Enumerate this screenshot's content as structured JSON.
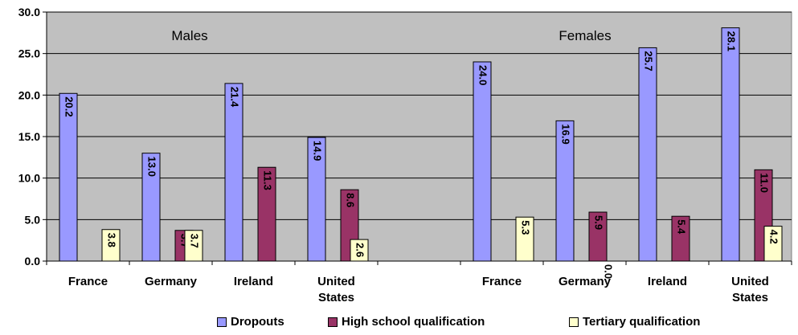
{
  "chart_data": {
    "type": "bar",
    "title": "",
    "xlabel": "",
    "ylabel": "",
    "ylim": [
      0,
      30
    ],
    "yticks": [
      "0.0",
      "5.0",
      "10.0",
      "15.0",
      "20.0",
      "25.0",
      "30.0"
    ],
    "grid": true,
    "legend_position": "bottom",
    "groups": [
      {
        "label": "Males",
        "categories": [
          "France",
          "Germany",
          "Ireland",
          "United States"
        ]
      },
      {
        "label": "Females",
        "categories": [
          "France",
          "Germany",
          "Ireland",
          "United States"
        ]
      }
    ],
    "series": [
      {
        "name": "Dropouts",
        "color": "#9999ff",
        "values": [
          20.2,
          13.0,
          21.4,
          14.9,
          24.0,
          16.9,
          25.7,
          28.1
        ],
        "labels": [
          "20.2",
          "13.0",
          "21.4",
          "14.9",
          "24.0",
          "16.9",
          "25.7",
          "28.1"
        ]
      },
      {
        "name": "High school qualification",
        "color": "#993366",
        "values": [
          null,
          3.7,
          11.3,
          8.6,
          null,
          5.9,
          5.4,
          11.0
        ],
        "labels": [
          null,
          "3.7",
          "11.3",
          "8.6",
          null,
          "5.9",
          "5.4",
          "11.0"
        ]
      },
      {
        "name": "Tertiary qualification",
        "color": "#ffffcc",
        "values": [
          3.8,
          3.7,
          null,
          2.6,
          5.3,
          0.0,
          null,
          4.2
        ],
        "labels": [
          "3.8",
          "3.7",
          null,
          "2.6",
          "5.3",
          "0.0",
          null,
          "4.2"
        ]
      }
    ],
    "plot_background": "#c0c0c0"
  }
}
